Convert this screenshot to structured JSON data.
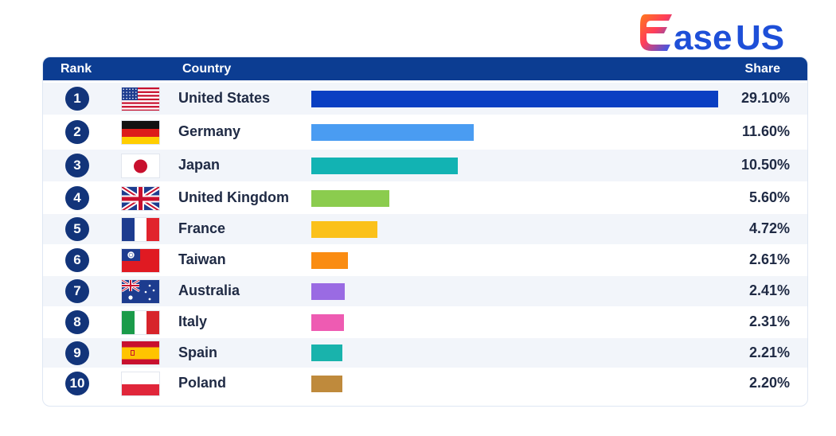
{
  "logo": {
    "text_parts": [
      "ase",
      "US"
    ],
    "icon": "easeus-e-logo-icon"
  },
  "chart_data": {
    "type": "bar",
    "orientation": "horizontal",
    "columns": {
      "rank": "Rank",
      "country": "Country",
      "share": "Share"
    },
    "xlim": [
      0,
      29.1
    ],
    "rows": [
      {
        "rank": "1",
        "country": "United States",
        "share": 29.1,
        "label": "29.10%",
        "color": "#0a3fc2",
        "flag": "us"
      },
      {
        "rank": "2",
        "country": "Germany",
        "share": 11.6,
        "label": "11.60%",
        "color": "#4a9cf2",
        "flag": "de"
      },
      {
        "rank": "3",
        "country": "Japan",
        "share": 10.5,
        "label": "10.50%",
        "color": "#12b3b3",
        "flag": "jp"
      },
      {
        "rank": "4",
        "country": "United Kingdom",
        "share": 5.6,
        "label": "5.60%",
        "color": "#8bcc4e",
        "flag": "gb"
      },
      {
        "rank": "5",
        "country": "France",
        "share": 4.72,
        "label": "4.72%",
        "color": "#fbc11a",
        "flag": "fr"
      },
      {
        "rank": "6",
        "country": "Taiwan",
        "share": 2.61,
        "label": "2.61%",
        "color": "#fa8c12",
        "flag": "tw"
      },
      {
        "rank": "7",
        "country": "Australia",
        "share": 2.41,
        "label": "2.41%",
        "color": "#9a6be3",
        "flag": "au"
      },
      {
        "rank": "8",
        "country": "Italy",
        "share": 2.31,
        "label": "2.31%",
        "color": "#ee5bb2",
        "flag": "it"
      },
      {
        "rank": "9",
        "country": "Spain",
        "share": 2.21,
        "label": "2.21%",
        "color": "#19b3ac",
        "flag": "es"
      },
      {
        "rank": "10",
        "country": "Poland",
        "share": 2.2,
        "label": "2.20%",
        "color": "#bf8a3c",
        "flag": "pl"
      }
    ]
  }
}
